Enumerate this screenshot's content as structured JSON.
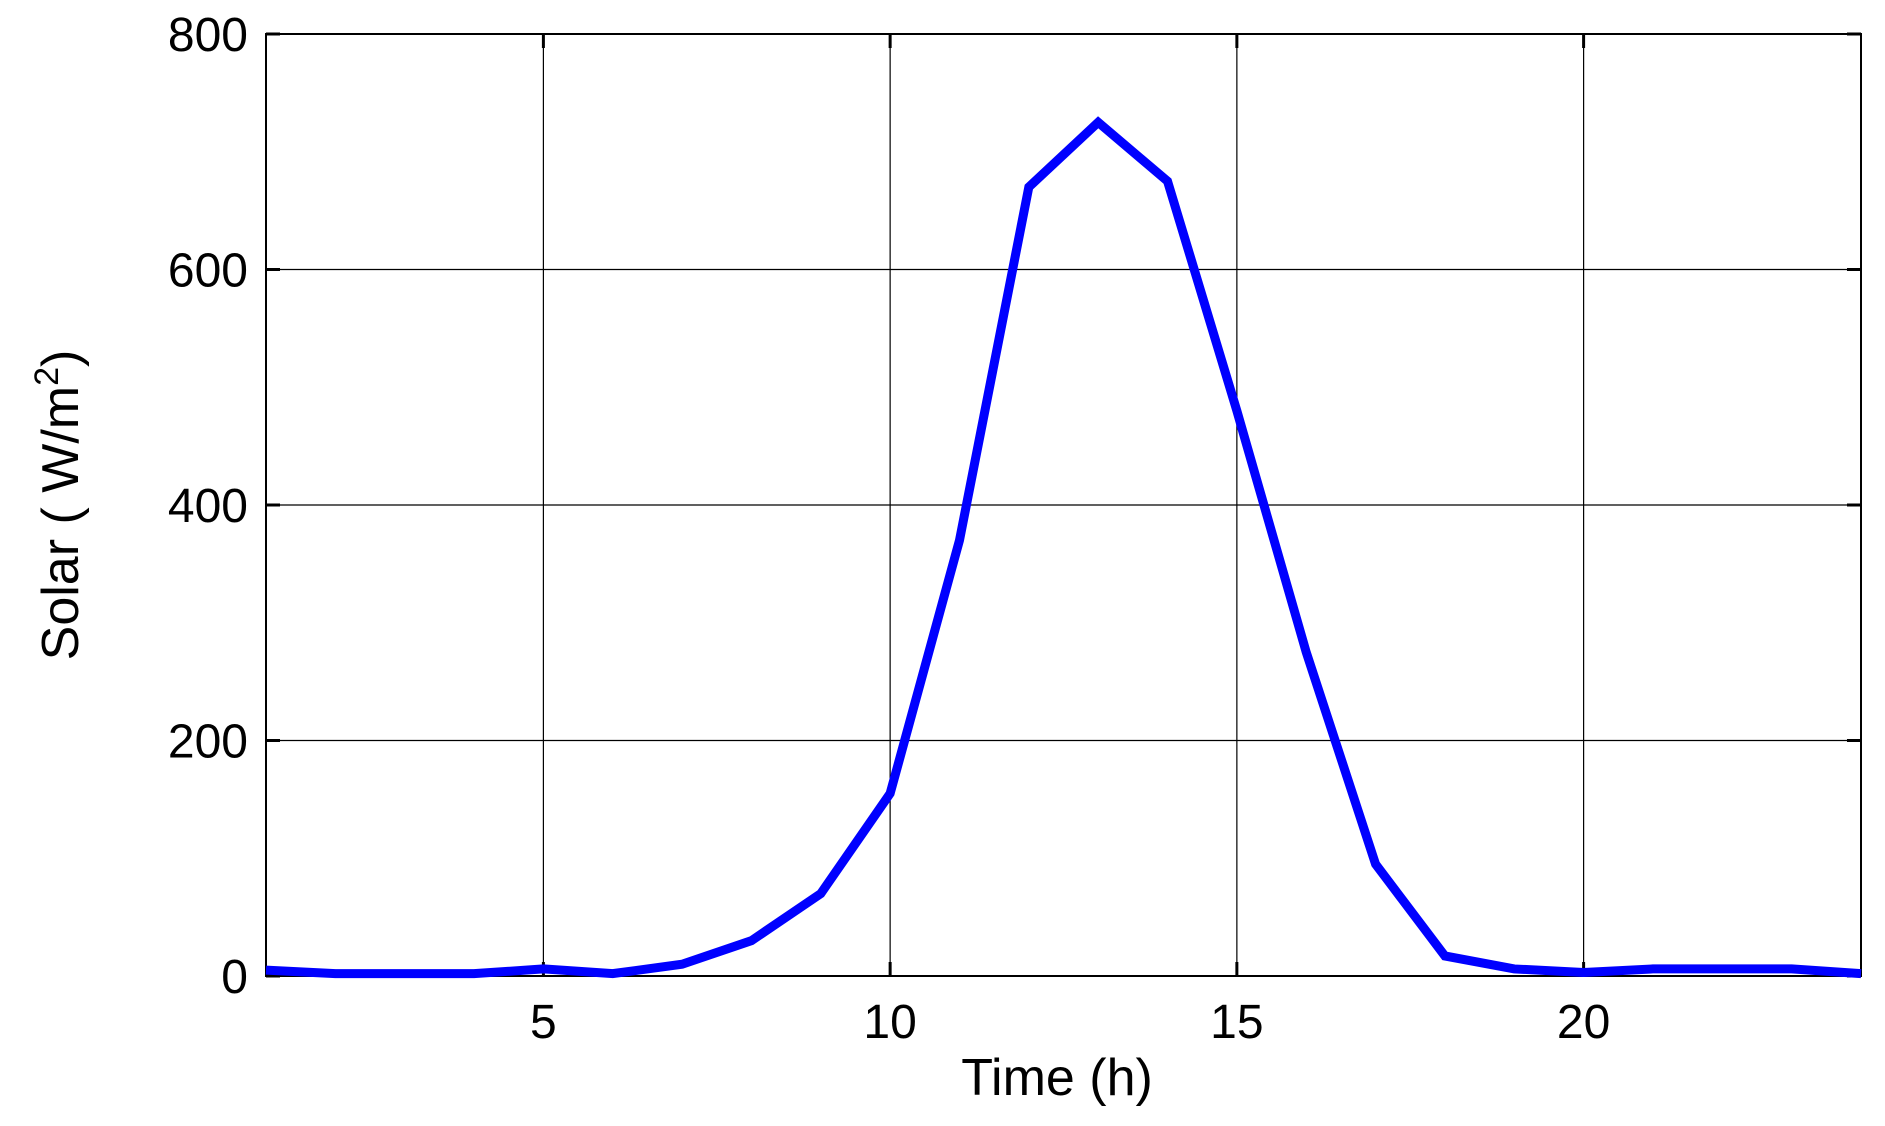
{
  "chart_data": {
    "type": "line",
    "x_label": "Time (h)",
    "y_label": [
      "Solar ( W/m",
      "2",
      ")"
    ],
    "x": [
      1,
      2,
      3,
      4,
      5,
      6,
      7,
      8,
      9,
      10,
      11,
      12,
      13,
      14,
      15,
      16,
      17,
      18,
      19,
      20,
      21,
      22,
      23,
      24
    ],
    "series": [
      {
        "color": "#0000ff",
        "values": [
          5,
          2,
          2,
          2,
          6,
          2,
          10,
          30,
          70,
          155,
          370,
          670,
          725,
          675,
          480,
          275,
          95,
          17,
          6,
          3,
          6,
          6,
          6,
          2
        ]
      }
    ],
    "xlim": [
      1,
      24
    ],
    "xticks": [
      5,
      10,
      15,
      20
    ],
    "ylim": [
      0,
      800
    ],
    "yticks": [
      0,
      200,
      400,
      600,
      800
    ],
    "grid": true
  }
}
